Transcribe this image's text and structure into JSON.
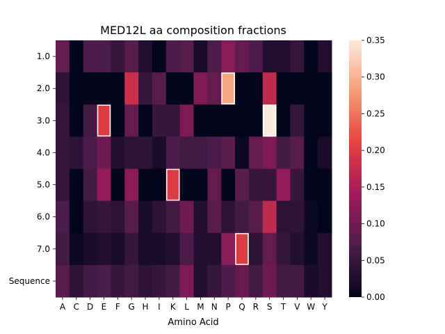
{
  "chart_data": {
    "type": "heatmap",
    "title": "MED12L aa composition fractions",
    "xlabel": "Amino Acid",
    "ylabel": "",
    "x_categories": [
      "A",
      "C",
      "D",
      "E",
      "F",
      "G",
      "H",
      "I",
      "K",
      "L",
      "M",
      "N",
      "P",
      "Q",
      "R",
      "S",
      "T",
      "V",
      "W",
      "Y"
    ],
    "y_categories": [
      "1.0",
      "2.0",
      "3.0",
      "4.0",
      "5.0",
      "6.0",
      "7.0",
      "Sequence"
    ],
    "values": [
      [
        0.09,
        0.0,
        0.07,
        0.07,
        0.05,
        0.08,
        0.03,
        0.0,
        0.07,
        0.08,
        0.02,
        0.07,
        0.12,
        0.09,
        0.07,
        0.03,
        0.03,
        0.05,
        0.0,
        0.03
      ],
      [
        0.04,
        0.0,
        0.0,
        0.0,
        0.0,
        0.18,
        0.05,
        0.08,
        0.0,
        0.0,
        0.11,
        0.09,
        0.29,
        0.0,
        0.0,
        0.17,
        0.0,
        0.0,
        0.0,
        0.0
      ],
      [
        0.05,
        0.0,
        0.06,
        0.2,
        0.0,
        0.09,
        0.0,
        0.05,
        0.05,
        0.11,
        0.0,
        0.0,
        0.0,
        0.0,
        0.0,
        0.35,
        0.0,
        0.05,
        0.0,
        0.0
      ],
      [
        0.05,
        0.04,
        0.07,
        0.1,
        0.03,
        0.04,
        0.04,
        0.02,
        0.07,
        0.06,
        0.06,
        0.07,
        0.08,
        0.01,
        0.09,
        0.11,
        0.06,
        0.08,
        0.0,
        0.02
      ],
      [
        0.05,
        0.0,
        0.06,
        0.13,
        0.0,
        0.12,
        0.0,
        0.0,
        0.2,
        0.0,
        0.0,
        0.09,
        0.0,
        0.08,
        0.05,
        0.05,
        0.13,
        0.05,
        0.0,
        0.0
      ],
      [
        0.07,
        0.0,
        0.04,
        0.05,
        0.04,
        0.08,
        0.02,
        0.04,
        0.06,
        0.1,
        0.03,
        0.08,
        0.04,
        0.06,
        0.08,
        0.17,
        0.04,
        0.04,
        0.01,
        0.0
      ],
      [
        0.06,
        0.01,
        0.02,
        0.03,
        0.02,
        0.05,
        0.02,
        0.02,
        0.03,
        0.07,
        0.03,
        0.03,
        0.12,
        0.2,
        0.04,
        0.09,
        0.05,
        0.03,
        0.01,
        0.03
      ],
      [
        0.08,
        0.04,
        0.06,
        0.07,
        0.05,
        0.06,
        0.04,
        0.05,
        0.06,
        0.11,
        0.03,
        0.05,
        0.07,
        0.09,
        0.06,
        0.1,
        0.06,
        0.06,
        0.02,
        0.03
      ]
    ],
    "highlighted_cells": [
      {
        "row": "2.0",
        "col": "P"
      },
      {
        "row": "3.0",
        "col": "E"
      },
      {
        "row": "3.0",
        "col": "S"
      },
      {
        "row": "5.0",
        "col": "K"
      },
      {
        "row": "7.0",
        "col": "Q"
      }
    ],
    "colorbar": {
      "min": 0.0,
      "max": 0.35,
      "ticks": [
        "0.00",
        "0.05",
        "0.10",
        "0.15",
        "0.20",
        "0.25",
        "0.30",
        "0.35"
      ],
      "colormap": "rocket",
      "stops": [
        "#03051a",
        "#4c1d4b",
        "#a11a5b",
        "#e83f3f",
        "#f69c73",
        "#faebdd"
      ]
    },
    "grid": false,
    "legend": "colorbar-right"
  }
}
